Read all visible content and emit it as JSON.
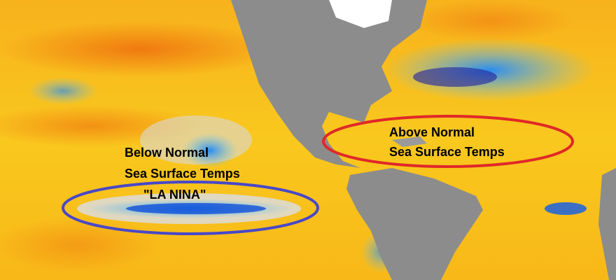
{
  "annotations": [
    {
      "lines": [
        "Below Normal",
        "Sea Surface Temps",
        "\"LA NINA\""
      ]
    },
    {
      "lines": [
        "Above Normal",
        "Sea Surface Temps"
      ]
    }
  ]
}
